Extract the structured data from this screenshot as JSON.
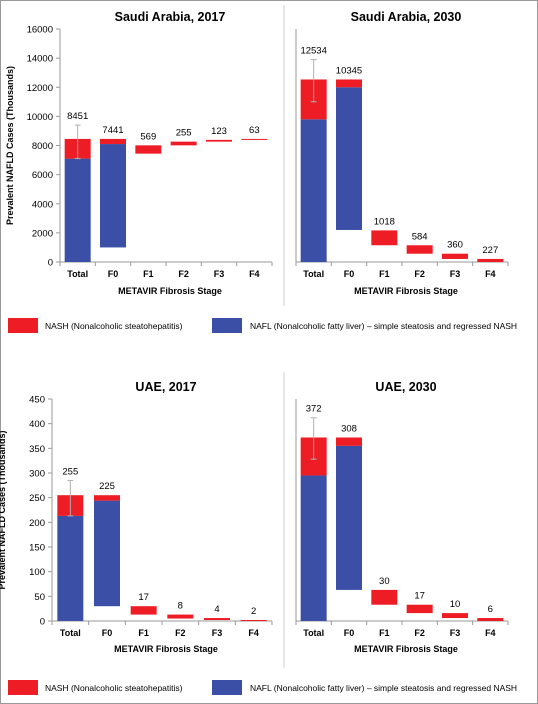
{
  "chart_data": [
    {
      "type": "bar",
      "title": "Saudi Arabia, 2017",
      "ylabel": "Prevalent NAFLD Cases (Thousands)",
      "xlabel": "METAVIR Fibrosis Stage",
      "categories": [
        "Total",
        "F0",
        "F1",
        "F2",
        "F3",
        "F4"
      ],
      "totals": [
        8451,
        7441,
        569,
        255,
        123,
        63
      ],
      "ylim": [
        0,
        16000
      ],
      "yticks": [
        0,
        2000,
        4000,
        6000,
        8000,
        10000,
        12000,
        14000,
        16000
      ],
      "error_bar": [
        7100,
        9400
      ],
      "segments": [
        {
          "series": "NAFL",
          "from": 0,
          "to": 7100
        },
        {
          "series": "NASH",
          "from": 7100,
          "to": 8451
        },
        {
          "series": "NAFL",
          "from": 1000,
          "to": 8100
        },
        {
          "series": "NASH",
          "from": 8100,
          "to": 8451
        },
        {
          "series": "NASH",
          "from": 7441,
          "to": 8010
        },
        {
          "series": "NASH",
          "from": 8010,
          "to": 8265
        },
        {
          "series": "NASH",
          "from": 8265,
          "to": 8388
        },
        {
          "series": "NASH",
          "from": 8388,
          "to": 8451
        }
      ]
    },
    {
      "type": "bar",
      "title": "Saudi Arabia, 2030",
      "ylabel": "",
      "xlabel": "METAVIR Fibrosis Stage",
      "categories": [
        "Total",
        "F0",
        "F1",
        "F2",
        "F3",
        "F4"
      ],
      "totals": [
        12534,
        10345,
        1018,
        584,
        360,
        227
      ],
      "ylim": [
        0,
        16000
      ],
      "yticks": [],
      "error_bar": [
        11000,
        13900
      ],
      "segments": [
        {
          "series": "NAFL",
          "from": 0,
          "to": 9800
        },
        {
          "series": "NASH",
          "from": 9800,
          "to": 12534
        },
        {
          "series": "NAFL",
          "from": 2200,
          "to": 12000
        },
        {
          "series": "NASH",
          "from": 12000,
          "to": 12534
        },
        {
          "series": "NASH",
          "from": 1150,
          "to": 2170
        },
        {
          "series": "NASH",
          "from": 570,
          "to": 1150
        },
        {
          "series": "NASH",
          "from": 210,
          "to": 570
        },
        {
          "series": "NASH",
          "from": 0,
          "to": 210
        }
      ]
    },
    {
      "type": "bar",
      "title": "UAE, 2017",
      "ylabel": "Prevalent NAFLD Cases (Thousands)",
      "xlabel": "METAVIR Fibrosis Stage",
      "categories": [
        "Total",
        "F0",
        "F1",
        "F2",
        "F3",
        "F4"
      ],
      "totals": [
        255,
        225,
        17,
        8,
        4,
        2
      ],
      "ylim": [
        0,
        450
      ],
      "yticks": [
        0,
        50,
        100,
        150,
        200,
        250,
        300,
        350,
        400,
        450
      ],
      "error_bar": [
        213,
        285
      ],
      "segments": [
        {
          "series": "NAFL",
          "from": 0,
          "to": 213
        },
        {
          "series": "NASH",
          "from": 213,
          "to": 255
        },
        {
          "series": "NAFL",
          "from": 30,
          "to": 244
        },
        {
          "series": "NASH",
          "from": 244,
          "to": 255
        },
        {
          "series": "NASH",
          "from": 13,
          "to": 30
        },
        {
          "series": "NASH",
          "from": 5,
          "to": 13
        },
        {
          "series": "NASH",
          "from": 2,
          "to": 6
        },
        {
          "series": "NASH",
          "from": 0,
          "to": 2
        }
      ]
    },
    {
      "type": "bar",
      "title": "UAE, 2030",
      "ylabel": "",
      "xlabel": "METAVIR Fibrosis Stage",
      "categories": [
        "Total",
        "F0",
        "F1",
        "F2",
        "F3",
        "F4"
      ],
      "totals": [
        372,
        308,
        30,
        17,
        10,
        6
      ],
      "ylim": [
        0,
        450
      ],
      "yticks": [],
      "error_bar": [
        328,
        412
      ],
      "segments": [
        {
          "series": "NAFL",
          "from": 0,
          "to": 295
        },
        {
          "series": "NASH",
          "from": 295,
          "to": 372
        },
        {
          "series": "NAFL",
          "from": 63,
          "to": 355
        },
        {
          "series": "NASH",
          "from": 355,
          "to": 372
        },
        {
          "series": "NASH",
          "from": 33,
          "to": 63
        },
        {
          "series": "NASH",
          "from": 16,
          "to": 33
        },
        {
          "series": "NASH",
          "from": 6,
          "to": 16
        },
        {
          "series": "NASH",
          "from": 0,
          "to": 6
        }
      ]
    }
  ],
  "legend": {
    "nash": "NASH (Nonalcoholic steatohepatitis)",
    "nafl": "NAFL (Nonalcoholic fatty liver) – simple steatosis and regressed NASH"
  },
  "colors": {
    "NASH": "#ee1c24",
    "NAFL": "#3b4fa6",
    "error": "#b0b0b0",
    "axis": "#9a9a9a"
  }
}
